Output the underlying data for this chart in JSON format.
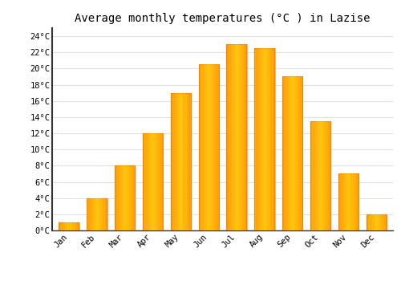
{
  "months": [
    "Jan",
    "Feb",
    "Mar",
    "Apr",
    "May",
    "Jun",
    "Jul",
    "Aug",
    "Sep",
    "Oct",
    "Nov",
    "Dec"
  ],
  "values": [
    1.0,
    4.0,
    8.0,
    12.0,
    17.0,
    20.5,
    23.0,
    22.5,
    19.0,
    13.5,
    7.0,
    2.0
  ],
  "bar_color_face": "#FFB800",
  "bar_color_edge": "#E08000",
  "title": "Average monthly temperatures (°C ) in Lazise",
  "ylim": [
    0,
    25
  ],
  "yticks": [
    0,
    2,
    4,
    6,
    8,
    10,
    12,
    14,
    16,
    18,
    20,
    22,
    24
  ],
  "ytick_labels": [
    "0°C",
    "2°C",
    "4°C",
    "6°C",
    "8°C",
    "10°C",
    "12°C",
    "14°C",
    "16°C",
    "18°C",
    "20°C",
    "22°C",
    "24°C"
  ],
  "bg_color": "#ffffff",
  "grid_color": "#e0e0e0",
  "title_fontsize": 10,
  "tick_fontsize": 7.5,
  "font_family": "monospace"
}
